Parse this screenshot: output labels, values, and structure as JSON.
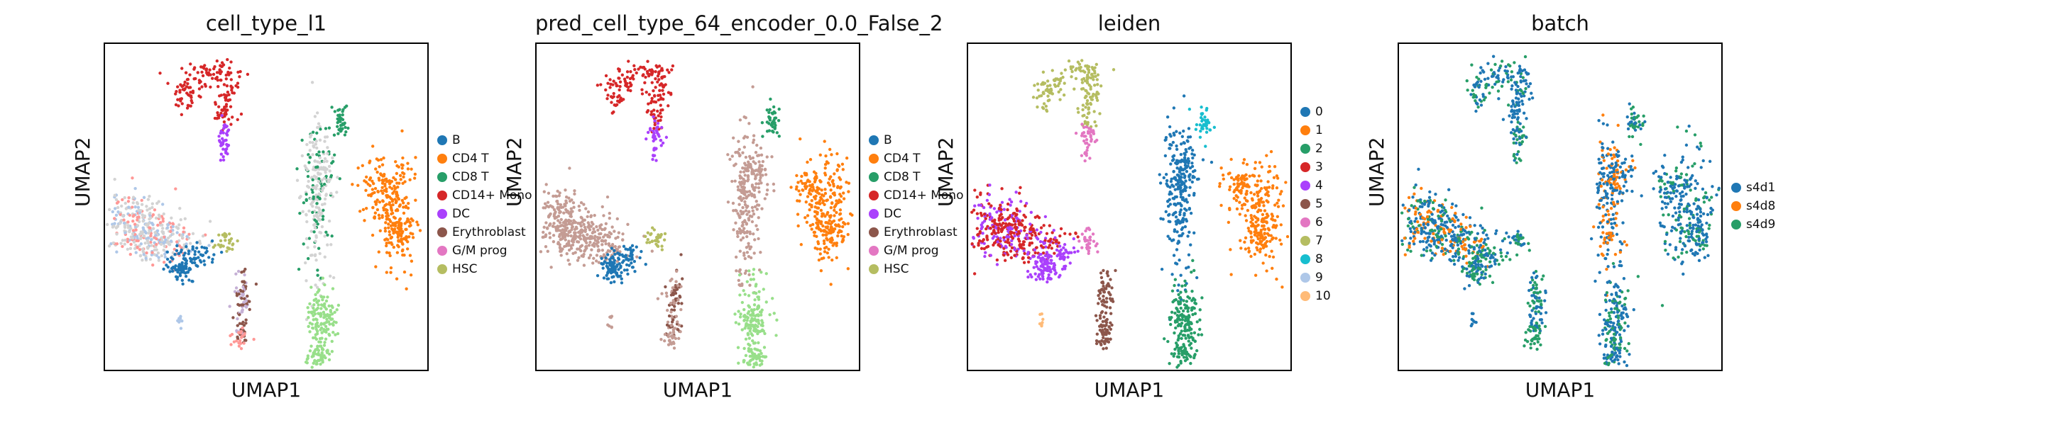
{
  "chart_data": [
    {
      "type": "scatter",
      "title": "cell_type_l1",
      "xlabel": "UMAP1",
      "ylabel": "UMAP2",
      "grid": false,
      "legend_position": "right",
      "legend": [
        {
          "label": "B",
          "color": "#1f77b4"
        },
        {
          "label": "CD4 T",
          "color": "#ff7f0e"
        },
        {
          "label": "CD8 T",
          "color": "#279e68"
        },
        {
          "label": "CD14+ Mono",
          "color": "#d62728"
        },
        {
          "label": "DC",
          "color": "#aa40fc"
        },
        {
          "label": "Erythroblast",
          "color": "#8c564b"
        },
        {
          "label": "G/M prog",
          "color": "#e377c2"
        },
        {
          "label": "HSC",
          "color": "#b5bd61"
        }
      ],
      "extra_colors": [
        "#d3d3d3",
        "#aec7e8",
        "#98df8a",
        "#ff9896",
        "#c5b0d5"
      ]
    },
    {
      "type": "scatter",
      "title": "pred_cell_type_64_encoder_0.0_False_2",
      "xlabel": "UMAP1",
      "ylabel": "UMAP2",
      "grid": false,
      "legend_position": "right",
      "legend": [
        {
          "label": "B",
          "color": "#1f77b4"
        },
        {
          "label": "CD4 T",
          "color": "#ff7f0e"
        },
        {
          "label": "CD8 T",
          "color": "#279e68"
        },
        {
          "label": "CD14+ Mono",
          "color": "#d62728"
        },
        {
          "label": "DC",
          "color": "#aa40fc"
        },
        {
          "label": "Erythroblast",
          "color": "#8c564b"
        },
        {
          "label": "G/M prog",
          "color": "#e377c2"
        },
        {
          "label": "HSC",
          "color": "#b5bd61"
        }
      ],
      "extra_colors": [
        "#c49c94",
        "#98df8a",
        "#aec7e8"
      ]
    },
    {
      "type": "scatter",
      "title": "leiden",
      "xlabel": "UMAP1",
      "ylabel": "UMAP2",
      "grid": false,
      "legend_position": "right",
      "legend": [
        {
          "label": "0",
          "color": "#1f77b4"
        },
        {
          "label": "1",
          "color": "#ff7f0e"
        },
        {
          "label": "2",
          "color": "#279e68"
        },
        {
          "label": "3",
          "color": "#d62728"
        },
        {
          "label": "4",
          "color": "#aa40fc"
        },
        {
          "label": "5",
          "color": "#8c564b"
        },
        {
          "label": "6",
          "color": "#e377c2"
        },
        {
          "label": "7",
          "color": "#b5bd61"
        },
        {
          "label": "8",
          "color": "#17becf"
        },
        {
          "label": "9",
          "color": "#aec7e8"
        },
        {
          "label": "10",
          "color": "#ffbb78"
        }
      ]
    },
    {
      "type": "scatter",
      "title": "batch",
      "xlabel": "UMAP1",
      "ylabel": "UMAP2",
      "grid": false,
      "legend_position": "right",
      "legend": [
        {
          "label": "s4d1",
          "color": "#1f77b4"
        },
        {
          "label": "s4d8",
          "color": "#ff7f0e"
        },
        {
          "label": "s4d9",
          "color": "#279e68"
        }
      ]
    }
  ]
}
